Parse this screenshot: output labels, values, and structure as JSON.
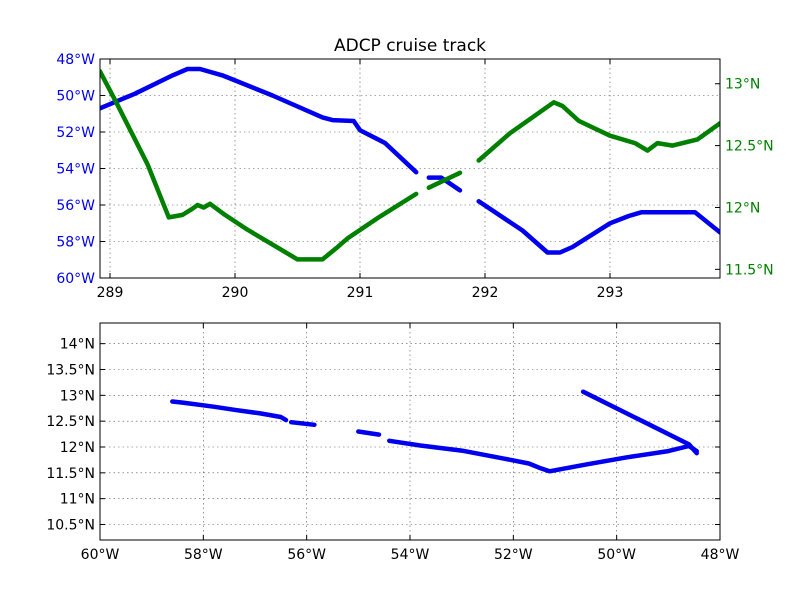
{
  "colors": {
    "blue": "#0000ee",
    "green": "#008000",
    "black": "#000000"
  },
  "chart_data": [
    {
      "type": "line",
      "title": "ADCP cruise track",
      "xlabel": "",
      "ylabel": "",
      "y2label": "",
      "xlim": [
        288.92,
        293.88
      ],
      "ylim": [
        60.0,
        48.0
      ],
      "y2lim": [
        11.43,
        13.2
      ],
      "grid": true,
      "x_ticks": [
        289,
        290,
        291,
        292,
        293
      ],
      "x_tick_labels": [
        "289",
        "290",
        "291",
        "292",
        "293"
      ],
      "y_ticks": [
        48,
        50,
        52,
        54,
        56,
        58,
        60
      ],
      "y_tick_labels": [
        "48°W",
        "50°W",
        "52°W",
        "54°W",
        "56°W",
        "58°W",
        "60°W"
      ],
      "y2_ticks": [
        11.5,
        12.0,
        12.5,
        13.0
      ],
      "y2_tick_labels": [
        "11.5°N",
        "12°N",
        "12.5°N",
        "13°N"
      ],
      "series": [
        {
          "axis": "left",
          "color": "#0000ee",
          "segments": [
            [
              [
                288.92,
                50.7
              ],
              [
                289.2,
                49.9
              ],
              [
                289.5,
                48.9
              ],
              [
                289.62,
                48.55
              ],
              [
                289.72,
                48.55
              ],
              [
                289.9,
                48.9
              ],
              [
                290.3,
                50.0
              ],
              [
                290.7,
                51.2
              ],
              [
                290.78,
                51.35
              ],
              [
                290.95,
                51.4
              ],
              [
                291.0,
                51.9
              ],
              [
                291.2,
                52.6
              ],
              [
                291.45,
                54.2
              ]
            ],
            [
              [
                291.55,
                54.5
              ],
              [
                291.65,
                54.5
              ],
              [
                291.8,
                55.2
              ]
            ],
            [
              [
                291.95,
                55.8
              ],
              [
                292.3,
                57.4
              ],
              [
                292.5,
                58.6
              ],
              [
                292.6,
                58.6
              ],
              [
                292.7,
                58.3
              ],
              [
                293.0,
                57.0
              ],
              [
                293.15,
                56.6
              ],
              [
                293.25,
                56.4
              ],
              [
                293.5,
                56.4
              ],
              [
                293.68,
                56.4
              ],
              [
                293.88,
                57.5
              ]
            ]
          ]
        },
        {
          "axis": "right",
          "color": "#008000",
          "segments": [
            [
              [
                288.92,
                13.1
              ],
              [
                289.05,
                12.85
              ],
              [
                289.3,
                12.35
              ],
              [
                289.47,
                11.92
              ],
              [
                289.58,
                11.94
              ],
              [
                289.66,
                11.99
              ],
              [
                289.7,
                12.02
              ],
              [
                289.75,
                12.0
              ],
              [
                289.8,
                12.03
              ],
              [
                289.92,
                11.94
              ],
              [
                290.1,
                11.82
              ],
              [
                290.3,
                11.7
              ],
              [
                290.5,
                11.58
              ],
              [
                290.7,
                11.58
              ],
              [
                290.82,
                11.68
              ],
              [
                290.9,
                11.75
              ],
              [
                291.15,
                11.92
              ],
              [
                291.45,
                12.11
              ]
            ],
            [
              [
                291.55,
                12.16
              ],
              [
                291.8,
                12.28
              ]
            ],
            [
              [
                291.95,
                12.38
              ],
              [
                292.2,
                12.6
              ],
              [
                292.55,
                12.85
              ],
              [
                292.62,
                12.82
              ],
              [
                292.75,
                12.7
              ],
              [
                293.0,
                12.58
              ],
              [
                293.2,
                12.52
              ],
              [
                293.3,
                12.46
              ],
              [
                293.38,
                12.52
              ],
              [
                293.5,
                12.5
              ],
              [
                293.7,
                12.55
              ],
              [
                293.88,
                12.68
              ]
            ]
          ]
        }
      ]
    },
    {
      "type": "scatter",
      "title": "",
      "xlabel": "",
      "ylabel": "",
      "xlim": [
        -60,
        -48
      ],
      "ylim": [
        10.2,
        14.4
      ],
      "grid": true,
      "x_ticks": [
        -60,
        -58,
        -56,
        -54,
        -52,
        -50,
        -48
      ],
      "x_tick_labels": [
        "60°W",
        "58°W",
        "56°W",
        "54°W",
        "52°W",
        "50°W",
        "48°W"
      ],
      "y_ticks": [
        10.5,
        11.0,
        11.5,
        12.0,
        12.5,
        13.0,
        13.5,
        14.0
      ],
      "y_tick_labels": [
        "10.5°N",
        "11°N",
        "11.5°N",
        "12°N",
        "12.5°N",
        "13°N",
        "13.5°N",
        "14°N"
      ],
      "series": [
        {
          "color": "#0000ee",
          "segments": [
            [
              [
                -58.6,
                12.88
              ],
              [
                -58.4,
                12.86
              ],
              [
                -57.8,
                12.78
              ],
              [
                -57.4,
                12.72
              ],
              [
                -56.9,
                12.65
              ],
              [
                -56.5,
                12.58
              ],
              [
                -56.4,
                12.52
              ]
            ],
            [
              [
                -56.3,
                12.48
              ],
              [
                -55.85,
                12.43
              ]
            ],
            [
              [
                -55.0,
                12.3
              ],
              [
                -54.6,
                12.24
              ]
            ],
            [
              [
                -54.4,
                12.12
              ],
              [
                -53.8,
                12.03
              ],
              [
                -53.0,
                11.93
              ],
              [
                -52.2,
                11.78
              ],
              [
                -51.7,
                11.68
              ],
              [
                -51.5,
                11.6
              ],
              [
                -51.3,
                11.53
              ],
              [
                -50.6,
                11.66
              ],
              [
                -49.8,
                11.8
              ],
              [
                -49.0,
                11.92
              ],
              [
                -48.6,
                12.02
              ],
              [
                -48.45,
                11.92
              ]
            ],
            [
              [
                -50.65,
                13.07
              ],
              [
                -49.5,
                12.5
              ],
              [
                -48.6,
                12.05
              ],
              [
                -48.45,
                11.88
              ]
            ]
          ]
        }
      ]
    }
  ]
}
